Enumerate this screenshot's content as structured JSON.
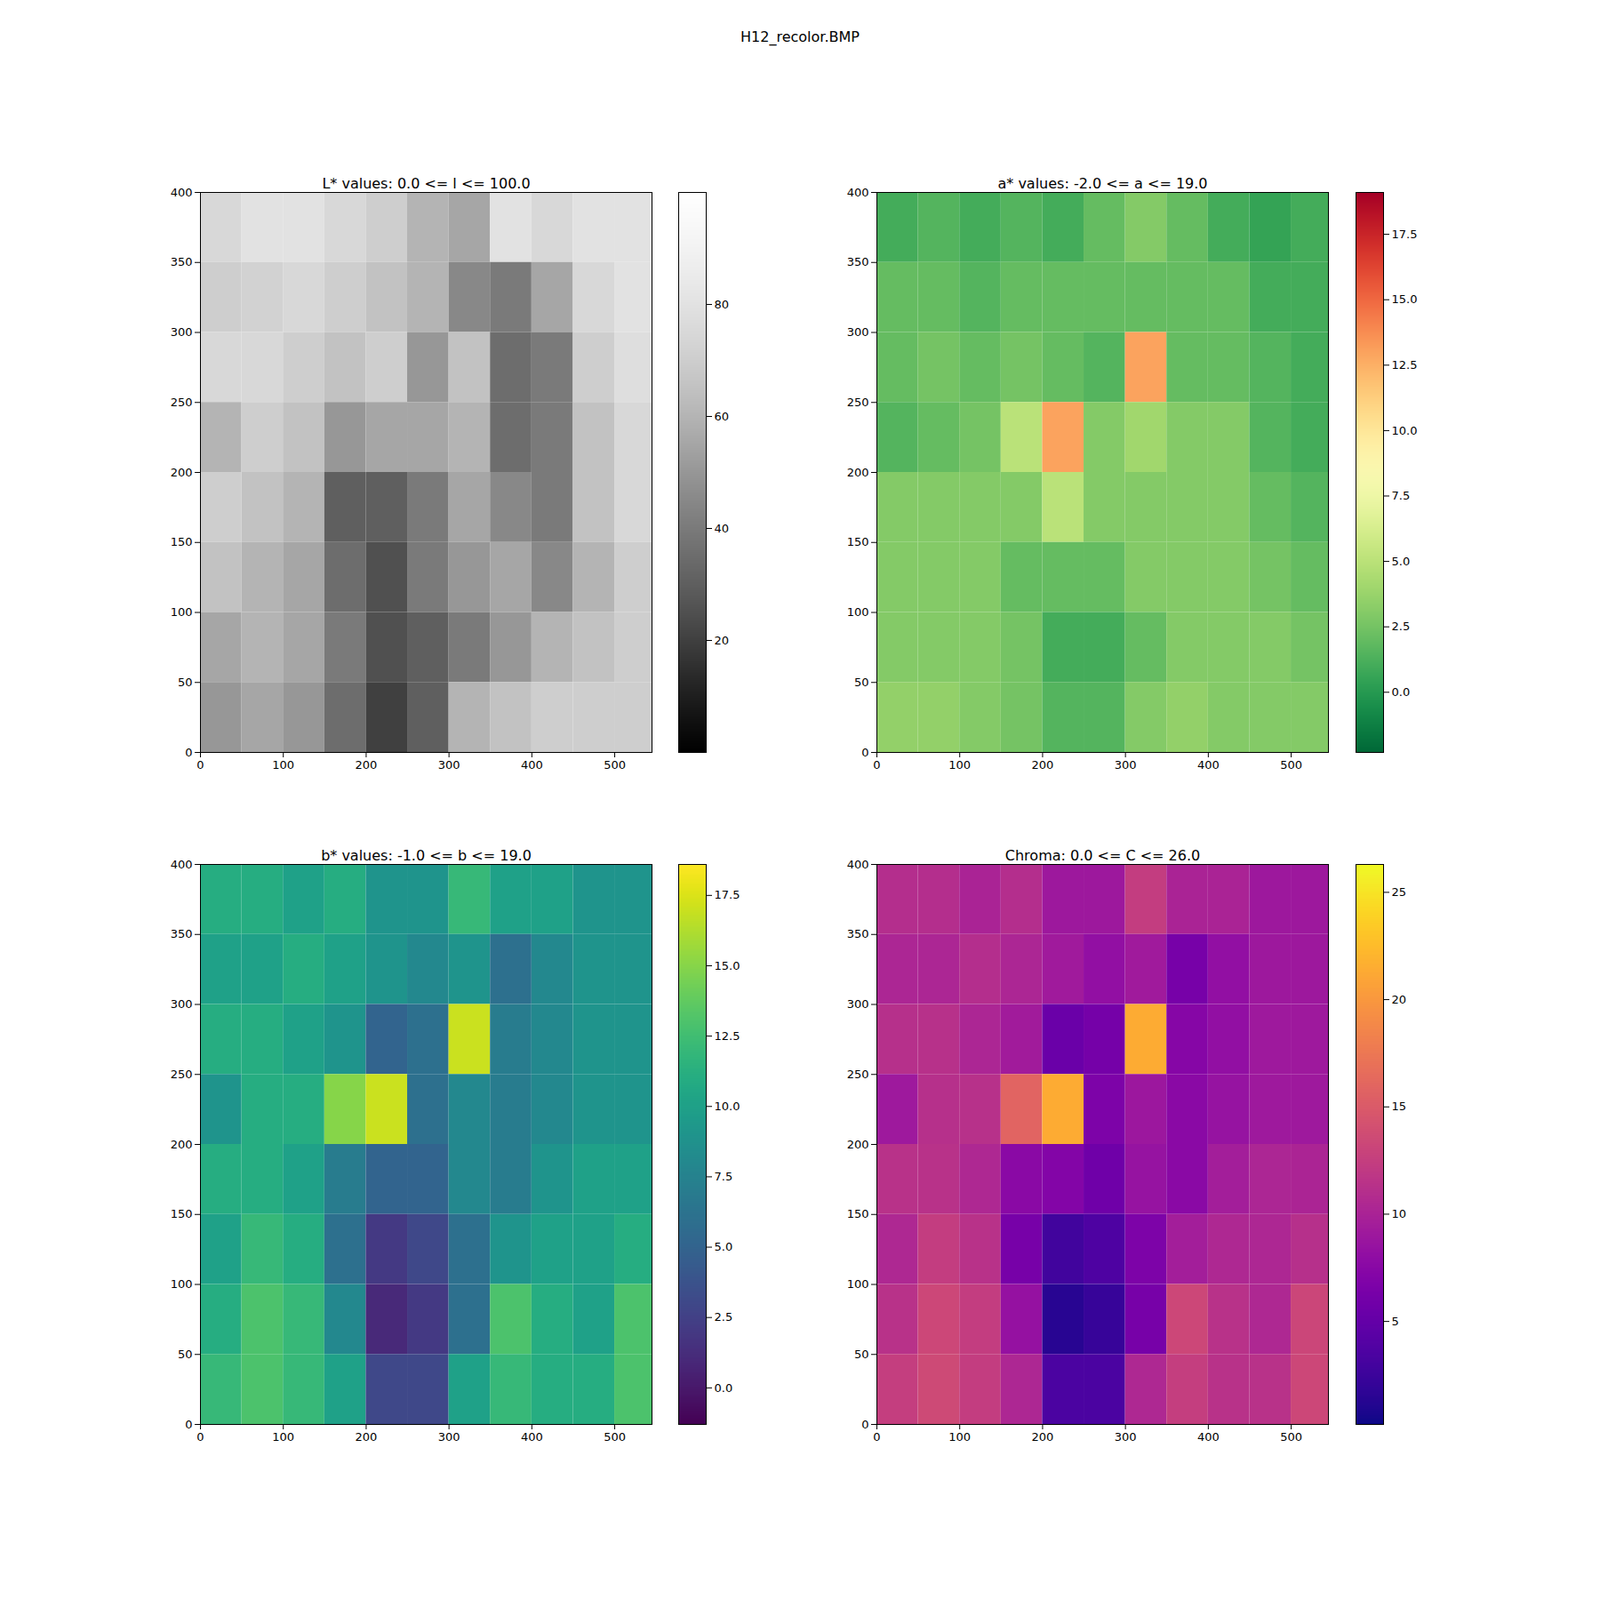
{
  "title": "H12_recolor.BMP",
  "chart_data": [
    {
      "type": "heatmap",
      "title": "L* values: 0.0 <= l <= 100.0",
      "xlim": [
        0,
        545
      ],
      "ylim": [
        0,
        400
      ],
      "xticks": [
        0,
        100,
        200,
        300,
        400,
        500
      ],
      "yticks": [
        0,
        50,
        100,
        150,
        200,
        250,
        300,
        350,
        400
      ],
      "xbins": [
        0,
        50,
        100,
        150,
        200,
        250,
        300,
        350,
        400,
        450,
        500,
        545
      ],
      "ybins": [
        400,
        350,
        300,
        250,
        200,
        150,
        100,
        50,
        0
      ],
      "cells": [
        [
          75,
          80,
          80,
          75,
          70,
          60,
          55,
          80,
          75,
          80,
          80
        ],
        [
          70,
          72,
          75,
          70,
          65,
          60,
          45,
          40,
          55,
          75,
          80
        ],
        [
          75,
          75,
          70,
          65,
          70,
          50,
          65,
          35,
          40,
          70,
          78
        ],
        [
          60,
          70,
          65,
          50,
          55,
          55,
          60,
          35,
          40,
          65,
          75
        ],
        [
          70,
          65,
          60,
          30,
          30,
          40,
          55,
          45,
          40,
          65,
          75
        ],
        [
          65,
          60,
          55,
          35,
          25,
          40,
          50,
          55,
          45,
          60,
          70
        ],
        [
          55,
          60,
          55,
          40,
          25,
          30,
          40,
          50,
          60,
          65,
          70
        ],
        [
          50,
          55,
          50,
          35,
          20,
          30,
          60,
          65,
          70,
          70,
          70
        ]
      ],
      "color": "gray",
      "colorbar": {
        "range": [
          0,
          100
        ],
        "ticks": [
          20,
          40,
          60,
          80
        ]
      }
    },
    {
      "type": "heatmap",
      "title": "a* values: -2.0 <= a <= 19.0",
      "xlim": [
        0,
        545
      ],
      "ylim": [
        0,
        400
      ],
      "xticks": [
        0,
        100,
        200,
        300,
        400,
        500
      ],
      "yticks": [
        0,
        50,
        100,
        150,
        200,
        250,
        300,
        350,
        400
      ],
      "xbins": [
        0,
        50,
        100,
        150,
        200,
        250,
        300,
        350,
        400,
        450,
        500,
        545
      ],
      "ybins": [
        400,
        350,
        300,
        250,
        200,
        150,
        100,
        50,
        0
      ],
      "cells": [
        [
          1,
          1.5,
          1,
          1.5,
          1,
          2,
          3,
          2,
          1,
          0.5,
          1
        ],
        [
          2,
          2,
          1.5,
          2,
          2,
          2,
          2,
          2,
          2,
          1,
          1
        ],
        [
          2,
          2.5,
          2,
          2.5,
          2,
          1.5,
          13,
          2,
          2,
          1.5,
          1
        ],
        [
          1.5,
          2,
          2.5,
          5,
          13,
          3,
          4,
          3,
          3,
          1.5,
          1
        ],
        [
          3,
          3,
          3,
          3,
          5,
          3,
          3,
          3,
          3,
          2,
          1.5
        ],
        [
          3,
          3,
          3,
          2,
          2,
          2,
          3,
          3,
          3,
          2.5,
          2
        ],
        [
          3,
          3,
          3,
          2.5,
          1,
          1,
          2,
          3,
          3,
          3,
          2.5
        ],
        [
          3.5,
          3.5,
          3,
          2.5,
          1.5,
          1.5,
          3,
          3.5,
          3,
          3,
          3
        ]
      ],
      "color": "RdYlGn_r",
      "colorbar": {
        "range": [
          -2.3,
          19.1
        ],
        "ticks": [
          {
            "value": 0,
            "label": "0.0"
          },
          {
            "value": 2.5,
            "label": "2.5"
          },
          {
            "value": 5,
            "label": "5.0"
          },
          {
            "value": 7.5,
            "label": "7.5"
          },
          {
            "value": 10,
            "label": "10.0"
          },
          {
            "value": 12.5,
            "label": "12.5"
          },
          {
            "value": 15,
            "label": "15.0"
          },
          {
            "value": 17.5,
            "label": "17.5"
          }
        ]
      }
    },
    {
      "type": "heatmap",
      "title": "b* values: -1.0 <= b <= 19.0",
      "xlim": [
        0,
        545
      ],
      "ylim": [
        0,
        400
      ],
      "xticks": [
        0,
        100,
        200,
        300,
        400,
        500
      ],
      "yticks": [
        0,
        50,
        100,
        150,
        200,
        250,
        300,
        350,
        400
      ],
      "xbins": [
        0,
        50,
        100,
        150,
        200,
        250,
        300,
        350,
        400,
        450,
        500,
        545
      ],
      "ybins": [
        400,
        350,
        300,
        250,
        200,
        150,
        100,
        50,
        0
      ],
      "cells": [
        [
          11,
          11,
          10,
          11,
          9,
          9,
          12,
          10,
          10,
          9,
          9
        ],
        [
          10,
          10,
          11,
          10,
          9,
          8,
          9,
          6,
          8,
          9,
          9
        ],
        [
          11,
          11,
          10,
          9,
          5,
          6,
          17,
          7,
          8,
          9,
          9
        ],
        [
          9,
          11,
          11,
          15,
          17,
          6,
          8,
          7,
          8,
          9,
          9
        ],
        [
          11,
          11,
          10,
          7,
          5,
          5,
          8,
          7,
          9,
          10,
          10
        ],
        [
          10,
          12,
          11,
          6,
          2,
          3,
          6,
          9,
          10,
          10,
          11
        ],
        [
          11,
          13,
          12,
          8,
          1,
          2,
          6,
          13,
          11,
          10,
          13
        ],
        [
          12,
          13,
          12,
          10,
          3,
          3,
          10,
          12,
          11,
          11,
          13
        ]
      ],
      "color": "viridis",
      "colorbar": {
        "range": [
          -1.3,
          18.6
        ],
        "ticks": [
          {
            "value": 0,
            "label": "0.0"
          },
          {
            "value": 2.5,
            "label": "2.5"
          },
          {
            "value": 5,
            "label": "5.0"
          },
          {
            "value": 7.5,
            "label": "7.5"
          },
          {
            "value": 10,
            "label": "10.0"
          },
          {
            "value": 12.5,
            "label": "12.5"
          },
          {
            "value": 15,
            "label": "15.0"
          },
          {
            "value": 17.5,
            "label": "17.5"
          }
        ]
      }
    },
    {
      "type": "heatmap",
      "title": "Chroma: 0.0 <= C <= 26.0",
      "xlim": [
        0,
        545
      ],
      "ylim": [
        0,
        400
      ],
      "xticks": [
        0,
        100,
        200,
        300,
        400,
        500
      ],
      "yticks": [
        0,
        50,
        100,
        150,
        200,
        250,
        300,
        350,
        400
      ],
      "xbins": [
        0,
        50,
        100,
        150,
        200,
        250,
        300,
        350,
        400,
        450,
        500,
        545
      ],
      "ybins": [
        400,
        350,
        300,
        250,
        200,
        150,
        100,
        50,
        0
      ],
      "cells": [
        [
          11,
          11,
          10,
          11,
          9,
          9,
          12.4,
          10,
          10,
          9,
          9
        ],
        [
          10.2,
          10.2,
          11,
          10.2,
          9.2,
          8.2,
          9.2,
          6.3,
          8.2,
          9,
          9
        ],
        [
          11.2,
          11.3,
          10.2,
          9.3,
          5.4,
          6.2,
          21.4,
          7.3,
          8.2,
          9.1,
          9.1
        ],
        [
          9.1,
          11.2,
          11.3,
          15.8,
          21.4,
          6.7,
          8.9,
          7.6,
          8.5,
          9.1,
          9.1
        ],
        [
          11.4,
          11.4,
          10.4,
          7.6,
          7.1,
          5.8,
          8.5,
          7.6,
          9.5,
          10.2,
          10.1
        ],
        [
          10.4,
          12.4,
          11.4,
          6.3,
          2.8,
          3.6,
          6.7,
          9.5,
          10.4,
          10.3,
          11.2
        ],
        [
          11.4,
          13.3,
          12.4,
          8.4,
          1.4,
          2.2,
          6.3,
          13.3,
          11.4,
          10.4,
          13.2
        ],
        [
          12.5,
          13.5,
          12.4,
          10.3,
          3.4,
          3.4,
          10.4,
          12.5,
          11.4,
          11.4,
          13.3
        ]
      ],
      "color": "plasma",
      "colorbar": {
        "range": [
          0.2,
          26.3
        ],
        "ticks": [
          5,
          10,
          15,
          20,
          25
        ]
      }
    }
  ]
}
